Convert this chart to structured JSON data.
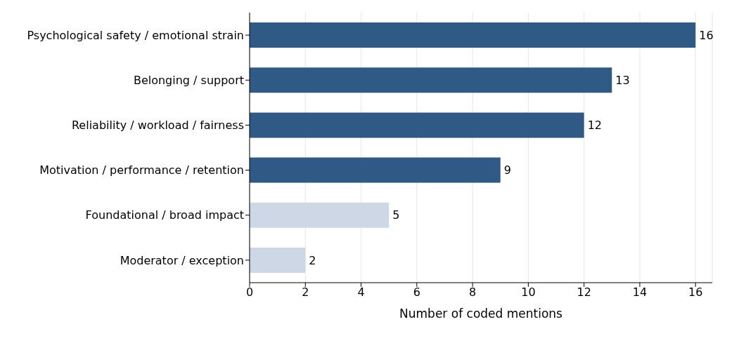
{
  "chart_data": {
    "type": "bar",
    "orientation": "horizontal",
    "categories": [
      "Psychological safety / emotional strain",
      "Belonging / support",
      "Reliability / workload / fairness",
      "Motivation / performance / retention",
      "Foundational / broad impact",
      "Moderator / exception"
    ],
    "values": [
      16,
      13,
      12,
      9,
      5,
      2
    ],
    "colors": [
      "#305a86",
      "#305a86",
      "#305a86",
      "#305a86",
      "#cdd7e6",
      "#cdd7e6"
    ],
    "xlabel": "Number of coded mentions",
    "xlim": [
      0,
      16.6
    ],
    "xticks": [
      0,
      2,
      4,
      6,
      8,
      10,
      12,
      14,
      16
    ],
    "grid": "x",
    "data_labels": true
  }
}
